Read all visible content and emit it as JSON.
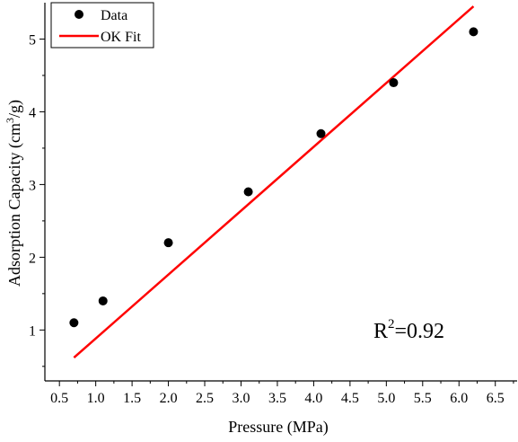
{
  "chart_data": {
    "type": "scatter",
    "xlabel": "Pressure (MPa)",
    "ylabel_main": "Adsorption Capacity (cm",
    "ylabel_sup": "3",
    "ylabel_tail": "/g)",
    "xlim": [
      0.3,
      6.8
    ],
    "ylim": [
      0.3,
      5.5
    ],
    "xticks": [
      0.5,
      1.0,
      1.5,
      2.0,
      2.5,
      3.0,
      3.5,
      4.0,
      4.5,
      5.0,
      5.5,
      6.0,
      6.5
    ],
    "xtick_labels": [
      "0.5",
      "1.0",
      "1.5",
      "2.0",
      "2.5",
      "3.0",
      "3.5",
      "4.0",
      "4.5",
      "5.0",
      "5.5",
      "6.0",
      "6.5"
    ],
    "yticks": [
      1,
      2,
      3,
      4,
      5
    ],
    "ytick_labels": [
      "1",
      "2",
      "3",
      "4",
      "5"
    ],
    "series": [
      {
        "name": "Data",
        "kind": "points",
        "color": "#000000",
        "x": [
          0.7,
          1.1,
          2.0,
          3.1,
          4.1,
          5.1,
          6.2
        ],
        "y": [
          1.1,
          1.4,
          2.2,
          2.9,
          3.7,
          4.4,
          5.1
        ]
      },
      {
        "name": "OK Fit",
        "kind": "line",
        "color": "#ff0000",
        "x": [
          0.7,
          6.2
        ],
        "y": [
          0.62,
          5.45
        ]
      }
    ],
    "legend_position": "top-left",
    "annotation": {
      "base": "R",
      "sup": "2",
      "tail": "=0.92"
    }
  }
}
